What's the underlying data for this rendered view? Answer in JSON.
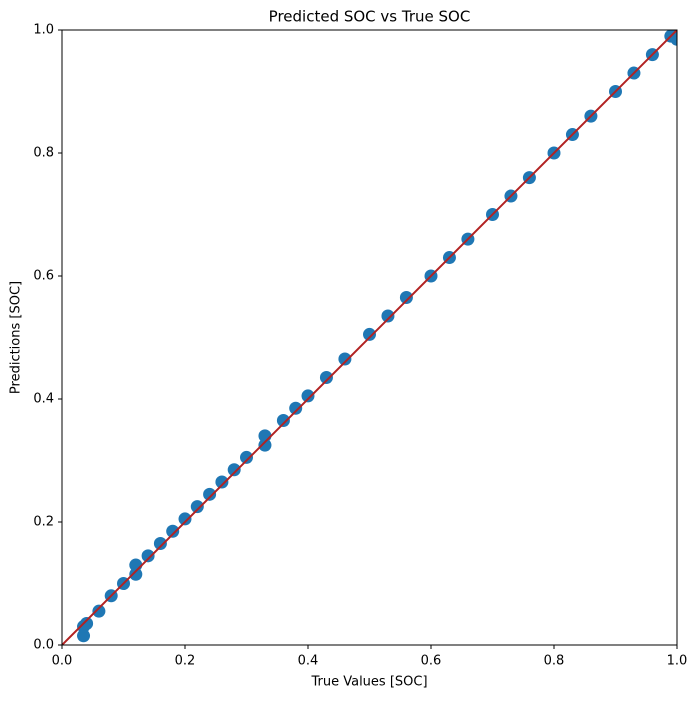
{
  "chart_data": {
    "type": "scatter",
    "title": "Predicted SOC vs True SOC",
    "xlabel": "True Values [SOC]",
    "ylabel": "Predictions [SOC]",
    "x": [
      0.035,
      0.035,
      0.04,
      0.06,
      0.08,
      0.1,
      0.12,
      0.12,
      0.14,
      0.16,
      0.18,
      0.2,
      0.22,
      0.24,
      0.26,
      0.28,
      0.3,
      0.33,
      0.33,
      0.36,
      0.38,
      0.4,
      0.43,
      0.46,
      0.5,
      0.53,
      0.56,
      0.6,
      0.63,
      0.66,
      0.7,
      0.73,
      0.76,
      0.8,
      0.83,
      0.86,
      0.9,
      0.93,
      0.96,
      0.99,
      1.0,
      1.0
    ],
    "values": [
      0.015,
      0.03,
      0.035,
      0.055,
      0.08,
      0.1,
      0.115,
      0.13,
      0.145,
      0.165,
      0.185,
      0.205,
      0.225,
      0.245,
      0.265,
      0.285,
      0.305,
      0.325,
      0.34,
      0.365,
      0.385,
      0.405,
      0.435,
      0.465,
      0.505,
      0.535,
      0.565,
      0.6,
      0.63,
      0.66,
      0.7,
      0.73,
      0.76,
      0.8,
      0.83,
      0.86,
      0.9,
      0.93,
      0.96,
      0.99,
      0.985,
      1.0
    ],
    "color": "#1f77b4",
    "line": {
      "x": [
        0,
        1
      ],
      "y": [
        0,
        1
      ],
      "color": "#b22222"
    },
    "xlim": [
      0,
      1
    ],
    "ylim": [
      0,
      1
    ],
    "xticks": [
      {
        "value": 0,
        "label": "0.0"
      },
      0.2,
      0.4,
      0.6,
      0.8,
      {
        "value": 1,
        "label": "1.0"
      }
    ],
    "yticks": [
      {
        "value": 0,
        "label": "0.0"
      },
      0.2,
      0.4,
      0.6,
      0.8,
      {
        "value": 1,
        "label": "1.0"
      }
    ]
  }
}
